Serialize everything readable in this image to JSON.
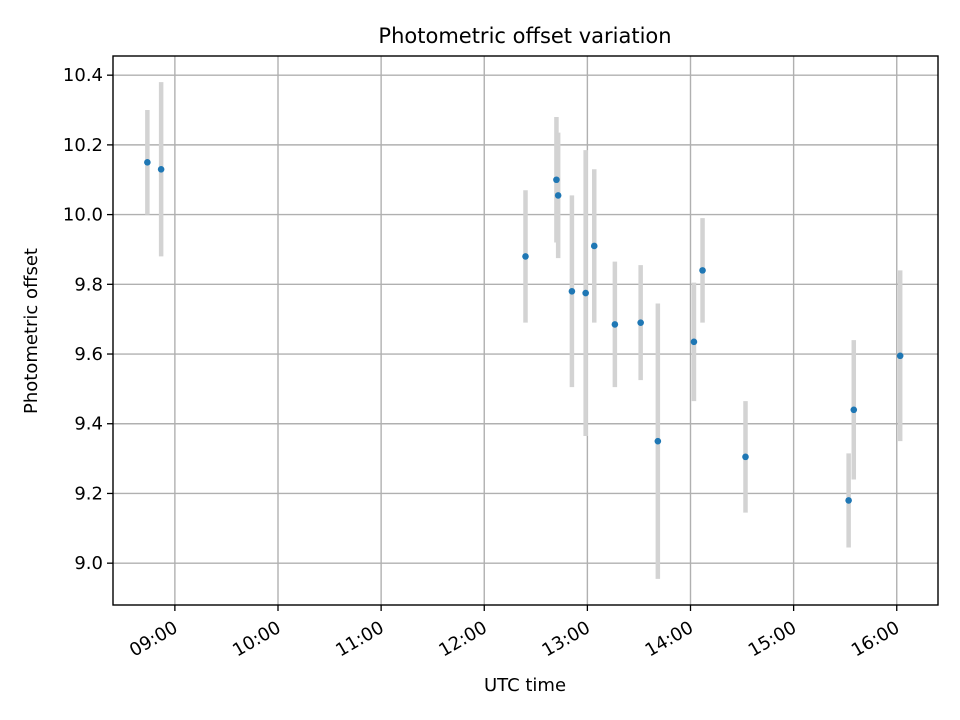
{
  "chart_data": {
    "type": "scatter",
    "title": "Photometric offset variation",
    "xlabel": "UTC time",
    "ylabel": "Photometric offset",
    "x_axis_kind": "time",
    "xlim": [
      "08:24",
      "16:24"
    ],
    "ylim": [
      8.88,
      10.455
    ],
    "xticks": [
      "09:00",
      "10:00",
      "11:00",
      "12:00",
      "13:00",
      "14:00",
      "15:00",
      "16:00"
    ],
    "yticks": [
      "9.0",
      "9.2",
      "9.4",
      "9.6",
      "9.8",
      "10.0",
      "10.2",
      "10.4"
    ],
    "grid": true,
    "legend": "none",
    "colors": {
      "marker": "#1f77b4",
      "errorbar": "#d3d3d3"
    },
    "series": [
      {
        "points": [
          {
            "x": "08:44",
            "y": 10.15,
            "yerr": 0.15
          },
          {
            "x": "08:52",
            "y": 10.13,
            "yerr": 0.25
          },
          {
            "x": "12:24",
            "y": 9.88,
            "yerr": 0.19
          },
          {
            "x": "12:42",
            "y": 10.1,
            "yerr": 0.18
          },
          {
            "x": "12:43",
            "y": 10.055,
            "yerr": 0.18
          },
          {
            "x": "12:51",
            "y": 9.78,
            "yerr": 0.275
          },
          {
            "x": "12:59",
            "y": 9.775,
            "yerr": 0.41
          },
          {
            "x": "13:04",
            "y": 9.91,
            "yerr": 0.22
          },
          {
            "x": "13:16",
            "y": 9.685,
            "yerr": 0.18
          },
          {
            "x": "13:31",
            "y": 9.69,
            "yerr": 0.165
          },
          {
            "x": "13:41",
            "y": 9.35,
            "yerr": 0.395
          },
          {
            "x": "14:02",
            "y": 9.635,
            "yerr": 0.17
          },
          {
            "x": "14:07",
            "y": 9.84,
            "yerr": 0.15
          },
          {
            "x": "14:32",
            "y": 9.305,
            "yerr": 0.16
          },
          {
            "x": "15:32",
            "y": 9.18,
            "yerr": 0.135
          },
          {
            "x": "15:35",
            "y": 9.44,
            "yerr": 0.2
          },
          {
            "x": "16:02",
            "y": 9.595,
            "yerr": 0.245
          }
        ]
      }
    ]
  }
}
